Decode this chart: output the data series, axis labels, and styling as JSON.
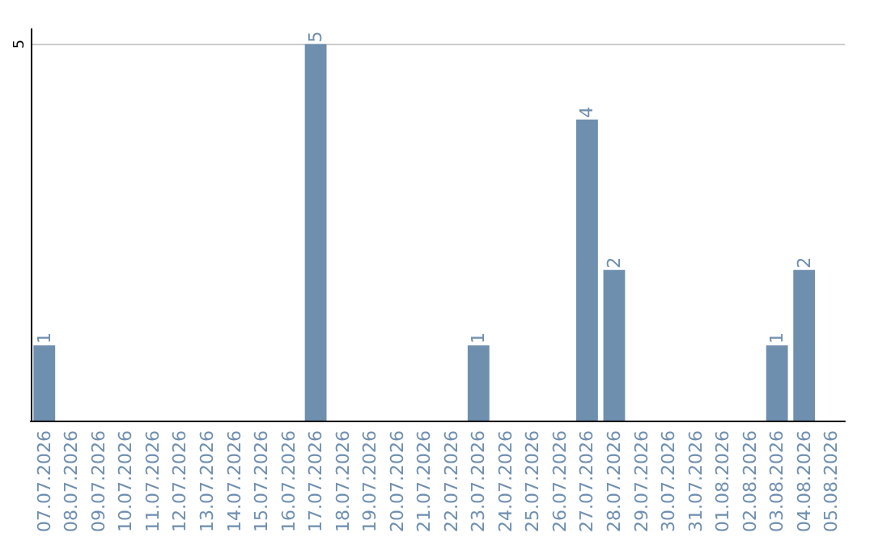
{
  "chart_data": {
    "type": "bar",
    "categories": [
      "07.07.2026",
      "08.07.2026",
      "09.07.2026",
      "10.07.2026",
      "11.07.2026",
      "12.07.2026",
      "13.07.2026",
      "14.07.2026",
      "15.07.2026",
      "16.07.2026",
      "17.07.2026",
      "18.07.2026",
      "19.07.2026",
      "20.07.2026",
      "21.07.2026",
      "22.07.2026",
      "23.07.2026",
      "24.07.2026",
      "25.07.2026",
      "26.07.2026",
      "27.07.2026",
      "28.07.2026",
      "29.07.2026",
      "30.07.2026",
      "31.07.2026",
      "01.08.2026",
      "02.08.2026",
      "03.08.2026",
      "04.08.2026",
      "05.08.2026"
    ],
    "values": [
      1,
      0,
      0,
      0,
      0,
      0,
      0,
      0,
      0,
      0,
      5,
      0,
      0,
      0,
      0,
      0,
      1,
      0,
      0,
      0,
      4,
      2,
      0,
      0,
      0,
      0,
      0,
      1,
      2,
      0
    ],
    "value_labels": [
      "1",
      null,
      null,
      null,
      null,
      null,
      null,
      null,
      null,
      null,
      "5",
      null,
      null,
      null,
      null,
      null,
      "1",
      null,
      null,
      null,
      "4",
      "2",
      null,
      null,
      null,
      null,
      null,
      "1",
      "2",
      null
    ],
    "color": "#6f8faf",
    "ylim": [
      0,
      5.2
    ],
    "yticks": [
      5
    ],
    "grid": "y"
  }
}
